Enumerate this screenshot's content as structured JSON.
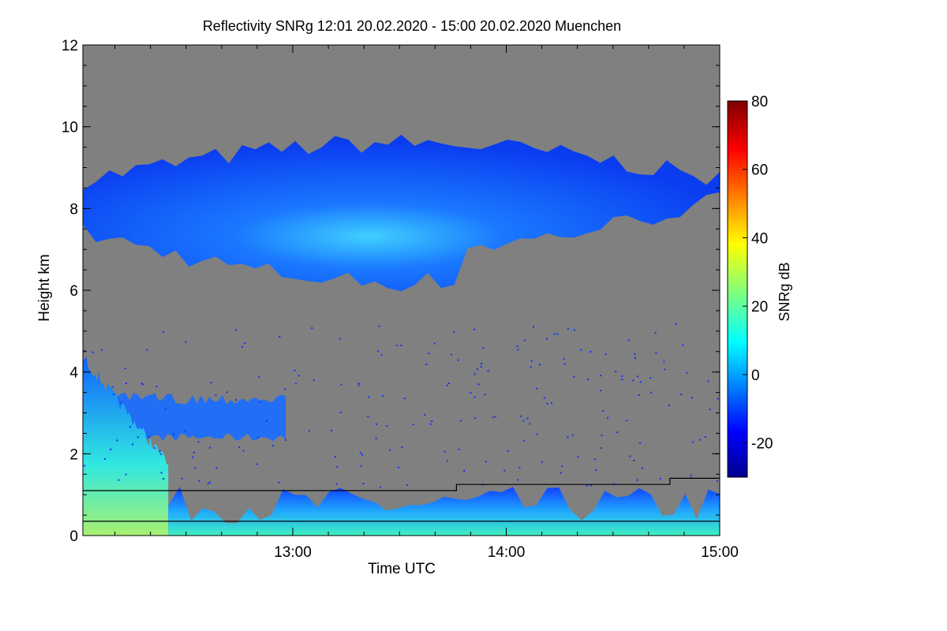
{
  "chart_data": {
    "type": "heatmap",
    "title": "Reflectivity SNRg   12:01 20.02.2020 - 15:00 20.02.2020 Muenchen",
    "xlabel": "Time UTC",
    "ylabel": "Height km",
    "xlim": [
      "12:01",
      "15:00"
    ],
    "x_ticks": [
      "13:00",
      "14:00",
      "15:00"
    ],
    "ylim": [
      0,
      12
    ],
    "y_ticks": [
      0,
      2,
      4,
      6,
      8,
      10,
      12
    ],
    "background_color": "#808080",
    "colorbar": {
      "label": "SNRg dB",
      "range": [
        -30,
        80
      ],
      "ticks": [
        -20,
        0,
        20,
        40,
        60,
        80
      ],
      "colormap": "jet"
    },
    "features": [
      {
        "feature": "cirrus layer",
        "time_start": "12:01",
        "time_end": "15:00",
        "base_km": 6.2,
        "top_km": 9.6,
        "snr_db_range": [
          -20,
          5
        ]
      },
      {
        "feature": "mid-level cloud",
        "time_start": "12:01",
        "time_end": "12:58",
        "base_km": 2.3,
        "top_km": 3.5,
        "snr_db_range": [
          -15,
          15
        ]
      },
      {
        "feature": "lower cloud / precipitation",
        "time_start": "12:01",
        "time_end": "12:25",
        "base_km": 0.0,
        "top_km": 4.5,
        "snr_db_range": [
          -10,
          30
        ]
      },
      {
        "feature": "boundary layer clutter",
        "time_start": "12:25",
        "time_end": "15:00",
        "base_km": 0.0,
        "top_km": 1.2,
        "snr_db_range": [
          -20,
          15
        ]
      }
    ],
    "lines": [
      {
        "points": [
          [
            "12:01",
            1.1
          ],
          [
            "13:46",
            1.1
          ],
          [
            "13:46",
            1.25
          ],
          [
            "14:46",
            1.25
          ],
          [
            "14:46",
            1.4
          ],
          [
            "15:00",
            1.4
          ]
        ]
      },
      {
        "points": [
          [
            "12:01",
            0.35
          ],
          [
            "15:00",
            0.35
          ]
        ]
      }
    ]
  }
}
